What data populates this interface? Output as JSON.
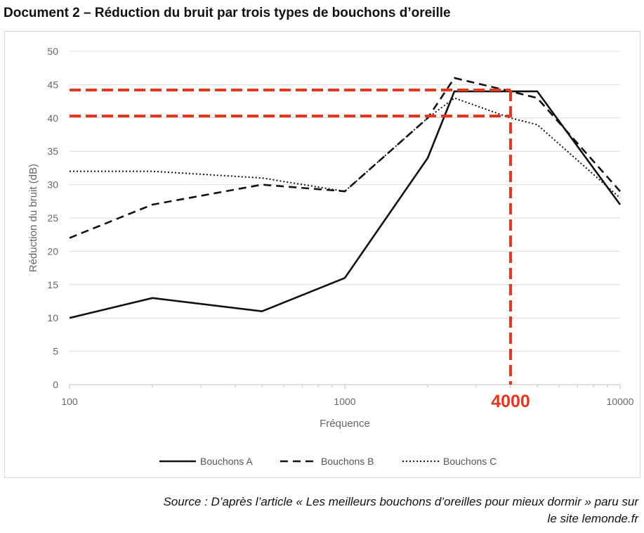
{
  "document": {
    "title": "Document 2 – Réduction du bruit par trois types de bouchons d’oreille",
    "source_line1": "Source : D’après l’article « Les meilleurs bouchons d’oreilles pour mieux dormir » paru sur",
    "source_line2": "le site lemonde.fr"
  },
  "colors": {
    "annotation": "#e8361c",
    "series": "#111111",
    "grid": "#d9d9d9"
  },
  "chart_data": {
    "type": "line",
    "title": "",
    "xlabel": "Fréquence",
    "ylabel": "Réduction du bruit (dB)",
    "x_scale": "log",
    "xlim": [
      100,
      10000
    ],
    "ylim": [
      0,
      50
    ],
    "x_ticks": [
      100,
      1000,
      10000
    ],
    "x_tick_labels": [
      "100",
      "1000",
      "10000"
    ],
    "y_ticks": [
      0,
      5,
      10,
      15,
      20,
      25,
      30,
      35,
      40,
      45,
      50
    ],
    "y_tick_labels": [
      "0",
      "5",
      "10",
      "15",
      "20",
      "25",
      "30",
      "35",
      "40",
      "45",
      "50"
    ],
    "grid": "horizontal",
    "legend_position": "bottom",
    "series": [
      {
        "name": "Bouchons A",
        "style": "solid",
        "x": [
          100,
          200,
          500,
          1000,
          2000,
          2500,
          4000,
          5000,
          10000
        ],
        "y": [
          10,
          13,
          11,
          16,
          34,
          44,
          44,
          44,
          27
        ]
      },
      {
        "name": "Bouchons B",
        "style": "dashed",
        "x": [
          100,
          200,
          500,
          1000,
          2000,
          2500,
          4000,
          5000,
          10000
        ],
        "y": [
          22,
          27,
          30,
          29,
          40,
          46,
          44,
          43,
          29
        ]
      },
      {
        "name": "Bouchons C",
        "style": "dotted",
        "x": [
          100,
          200,
          500,
          1000,
          2000,
          2500,
          4000,
          5000,
          10000
        ],
        "y": [
          32,
          32,
          31,
          29,
          40,
          43,
          40,
          39,
          28
        ]
      }
    ],
    "annotations": {
      "x_marker": {
        "x": 4000,
        "label": "4000"
      },
      "y_markers": [
        44.2,
        40.3
      ]
    }
  }
}
